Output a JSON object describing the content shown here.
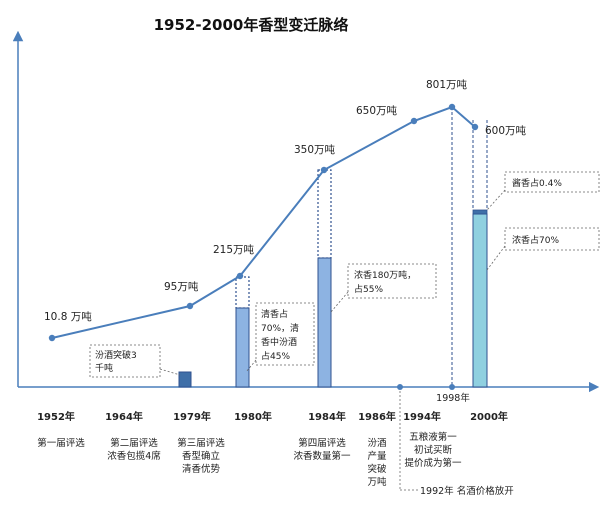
{
  "title": "1952-2000年香型变迁脉络",
  "colors": {
    "axis": "#4a7ebb",
    "line": "#4a7ebb",
    "bar_fill": "#8db3e2",
    "bar_stroke": "#2f528f",
    "bar_dark": "#3f6fa8",
    "bar_2000": "#8fd0e0"
  },
  "points": [
    {
      "label": "10.8 万吨"
    },
    {
      "label": "95万吨"
    },
    {
      "label": "215万吨"
    },
    {
      "label": "350万吨"
    },
    {
      "label": "650万吨"
    },
    {
      "label": "801万吨"
    },
    {
      "label": "600万吨"
    }
  ],
  "years": [
    "1952年",
    "1964年",
    "1979年",
    "1980年",
    "1984年",
    "1986年",
    "1994年",
    "2000年"
  ],
  "year_1998": "1998年",
  "events": {
    "e1952": [
      "第一届评选"
    ],
    "e1964": [
      "第二届评选",
      "浓香包揽4席"
    ],
    "e1979": [
      "第三届评选",
      "香型确立",
      "清香优势"
    ],
    "e1984": [
      "第四届评选",
      "浓香数量第一"
    ],
    "e1986": [
      "汾酒",
      "产量",
      "突破",
      "万吨"
    ],
    "e1994": [
      "五粮液第一",
      "初试买断",
      "提价成为第一"
    ],
    "e1992": "1992年 名酒价格放开"
  },
  "callouts": {
    "fenjiu": [
      "汾酒突破3",
      "千吨"
    ],
    "qingxiang": [
      "清香占",
      "70%，清",
      "香中汾酒",
      "占45%"
    ],
    "nong1984": [
      "浓香180万吨，",
      "占55%"
    ],
    "jiang2000": "酱香占0.4%",
    "nong2000": "浓香占70%"
  }
}
